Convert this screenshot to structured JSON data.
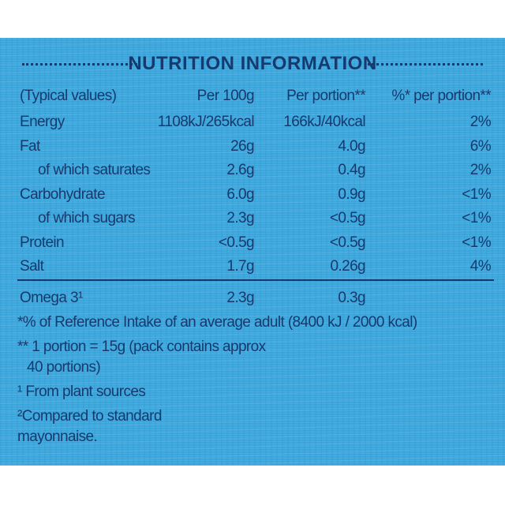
{
  "header": {
    "title": "NUTRITION INFORMATION"
  },
  "table": {
    "columns": [
      "(Typical values)",
      "Per 100g",
      "Per portion**",
      "%* per portion**"
    ],
    "rows": [
      [
        "Energy",
        "1108kJ/265kcal",
        "166kJ/40kcal",
        "2%"
      ],
      [
        "Fat",
        "26g",
        "4.0g",
        "6%"
      ],
      [
        "of which saturates",
        "2.6g",
        "0.4g",
        "2%"
      ],
      [
        "Carbohydrate",
        "6.0g",
        "0.9g",
        "<1%"
      ],
      [
        "of which sugars",
        "2.3g",
        "<0.5g",
        "<1%"
      ],
      [
        "Protein",
        "<0.5g",
        "<0.5g",
        "<1%"
      ],
      [
        "Salt",
        "1.7g",
        "0.26g",
        "4%"
      ]
    ],
    "extra_row": [
      "Omega 3¹",
      "2.3g",
      "0.3g"
    ]
  },
  "footnotes": [
    "*% of Reference Intake of an average adult (8400 kJ / 2000 kcal)",
    "** 1 portion = 15g (pack contains approx",
    "40 portions)",
    "¹ From plant sources",
    "²Compared to standard",
    "mayonnaise."
  ]
}
